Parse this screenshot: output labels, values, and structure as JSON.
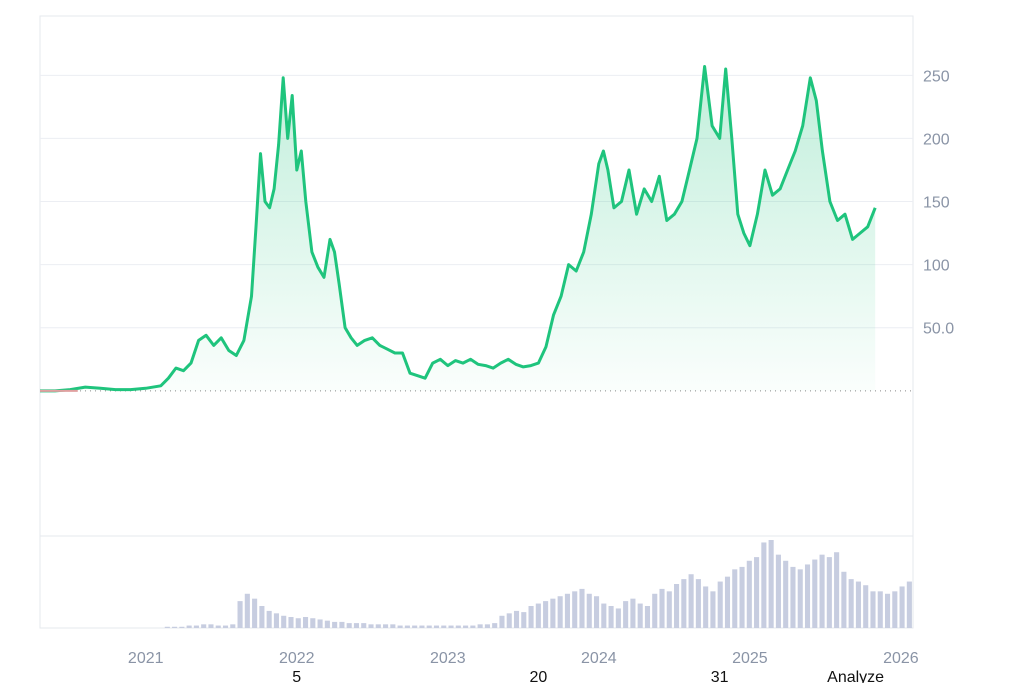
{
  "chart_data": {
    "type": "area",
    "title": "",
    "xlabel": "",
    "ylabel": "",
    "y_ticks": [
      "50.0",
      "100",
      "150",
      "200",
      "250"
    ],
    "y_tick_values": [
      50,
      100,
      150,
      200,
      250
    ],
    "x_ticks": [
      "2021",
      "2022",
      "2023",
      "2024",
      "2025",
      "2026"
    ],
    "xlim": [
      2020.3,
      2026.08
    ],
    "ylim": [
      -115,
      297
    ],
    "baseline": 0,
    "grid": true,
    "line_color": "#1fc47d",
    "baseline_color": "#e0a0a0",
    "volume_color": "#c7cde0",
    "series": [
      {
        "values": [
          [
            2020.3,
            0
          ],
          [
            2020.4,
            0
          ],
          [
            2020.5,
            1
          ],
          [
            2020.6,
            3
          ],
          [
            2020.7,
            2
          ],
          [
            2020.8,
            1
          ],
          [
            2020.9,
            1
          ],
          [
            2021.0,
            2
          ],
          [
            2021.1,
            4
          ],
          [
            2021.15,
            10
          ],
          [
            2021.2,
            18
          ],
          [
            2021.25,
            16
          ],
          [
            2021.3,
            22
          ],
          [
            2021.35,
            40
          ],
          [
            2021.4,
            44
          ],
          [
            2021.45,
            36
          ],
          [
            2021.5,
            42
          ],
          [
            2021.55,
            32
          ],
          [
            2021.6,
            28
          ],
          [
            2021.65,
            40
          ],
          [
            2021.7,
            75
          ],
          [
            2021.73,
            130
          ],
          [
            2021.76,
            188
          ],
          [
            2021.79,
            150
          ],
          [
            2021.82,
            145
          ],
          [
            2021.85,
            160
          ],
          [
            2021.88,
            195
          ],
          [
            2021.91,
            248
          ],
          [
            2021.94,
            200
          ],
          [
            2021.97,
            234
          ],
          [
            2022.0,
            175
          ],
          [
            2022.03,
            190
          ],
          [
            2022.06,
            150
          ],
          [
            2022.1,
            110
          ],
          [
            2022.14,
            98
          ],
          [
            2022.18,
            90
          ],
          [
            2022.22,
            120
          ],
          [
            2022.25,
            110
          ],
          [
            2022.28,
            85
          ],
          [
            2022.32,
            50
          ],
          [
            2022.36,
            42
          ],
          [
            2022.4,
            36
          ],
          [
            2022.45,
            40
          ],
          [
            2022.5,
            42
          ],
          [
            2022.55,
            36
          ],
          [
            2022.6,
            33
          ],
          [
            2022.65,
            30
          ],
          [
            2022.7,
            30
          ],
          [
            2022.75,
            14
          ],
          [
            2022.8,
            12
          ],
          [
            2022.85,
            10
          ],
          [
            2022.9,
            22
          ],
          [
            2022.95,
            25
          ],
          [
            2023.0,
            20
          ],
          [
            2023.05,
            24
          ],
          [
            2023.1,
            22
          ],
          [
            2023.15,
            25
          ],
          [
            2023.2,
            21
          ],
          [
            2023.25,
            20
          ],
          [
            2023.3,
            18
          ],
          [
            2023.35,
            22
          ],
          [
            2023.4,
            25
          ],
          [
            2023.45,
            21
          ],
          [
            2023.5,
            19
          ],
          [
            2023.55,
            20
          ],
          [
            2023.6,
            22
          ],
          [
            2023.65,
            35
          ],
          [
            2023.7,
            60
          ],
          [
            2023.75,
            75
          ],
          [
            2023.8,
            100
          ],
          [
            2023.85,
            95
          ],
          [
            2023.9,
            110
          ],
          [
            2023.95,
            140
          ],
          [
            2024.0,
            180
          ],
          [
            2024.03,
            190
          ],
          [
            2024.06,
            175
          ],
          [
            2024.1,
            145
          ],
          [
            2024.15,
            150
          ],
          [
            2024.2,
            175
          ],
          [
            2024.25,
            140
          ],
          [
            2024.3,
            160
          ],
          [
            2024.35,
            150
          ],
          [
            2024.4,
            170
          ],
          [
            2024.45,
            135
          ],
          [
            2024.5,
            140
          ],
          [
            2024.55,
            150
          ],
          [
            2024.6,
            175
          ],
          [
            2024.65,
            200
          ],
          [
            2024.7,
            257
          ],
          [
            2024.75,
            210
          ],
          [
            2024.8,
            200
          ],
          [
            2024.84,
            255
          ],
          [
            2024.88,
            200
          ],
          [
            2024.92,
            140
          ],
          [
            2024.96,
            125
          ],
          [
            2025.0,
            115
          ],
          [
            2025.05,
            140
          ],
          [
            2025.1,
            175
          ],
          [
            2025.15,
            155
          ],
          [
            2025.2,
            160
          ],
          [
            2025.25,
            175
          ],
          [
            2025.3,
            190
          ],
          [
            2025.35,
            210
          ],
          [
            2025.4,
            248
          ],
          [
            2025.44,
            230
          ],
          [
            2025.48,
            190
          ],
          [
            2025.53,
            150
          ],
          [
            2025.58,
            135
          ],
          [
            2025.63,
            140
          ],
          [
            2025.68,
            120
          ],
          [
            2025.73,
            125
          ],
          [
            2025.78,
            130
          ],
          [
            2025.83,
            145
          ]
        ]
      }
    ],
    "volume": [
      0,
      0,
      0,
      0,
      0,
      0,
      0,
      0,
      0,
      0,
      0,
      0,
      0,
      0,
      0,
      0,
      0,
      1,
      1,
      1,
      2,
      2,
      3,
      3,
      2,
      2,
      3,
      22,
      28,
      24,
      18,
      14,
      12,
      10,
      9,
      8,
      9,
      8,
      7,
      6,
      5,
      5,
      4,
      4,
      4,
      3,
      3,
      3,
      3,
      2,
      2,
      2,
      2,
      2,
      2,
      2,
      2,
      2,
      2,
      2,
      3,
      3,
      4,
      10,
      12,
      14,
      13,
      18,
      20,
      22,
      24,
      26,
      28,
      30,
      32,
      28,
      26,
      20,
      18,
      16,
      22,
      24,
      20,
      18,
      28,
      32,
      30,
      36,
      40,
      44,
      40,
      34,
      30,
      38,
      42,
      48,
      50,
      55,
      58,
      70,
      72,
      60,
      55,
      50,
      48,
      52,
      56,
      60,
      58,
      62,
      46,
      40,
      38,
      35,
      30,
      30,
      28,
      30,
      34,
      38
    ],
    "annotations": [
      "5",
      "20",
      "31",
      "Analyze"
    ]
  }
}
